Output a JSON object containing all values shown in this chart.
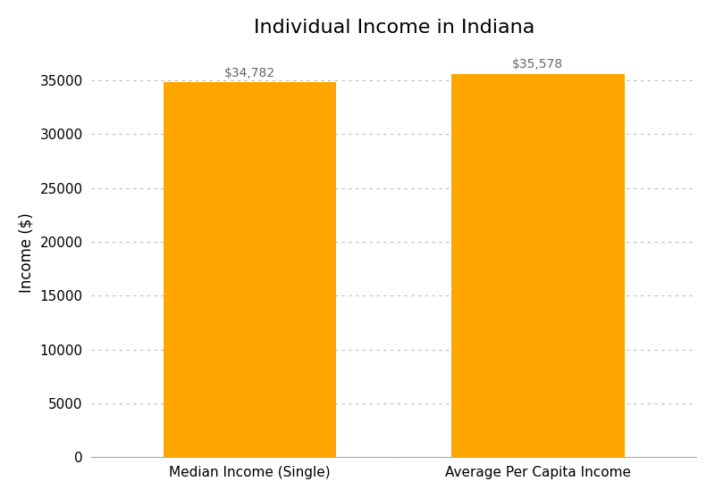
{
  "title": "Individual Income in Indiana",
  "categories": [
    "Median Income (Single)",
    "Average Per Capita Income"
  ],
  "values": [
    34782,
    35578
  ],
  "bar_color": "#FFA500",
  "bar_labels": [
    "$34,782",
    "$35,578"
  ],
  "ylabel": "Income ($)",
  "ylim": [
    0,
    38000
  ],
  "yticks": [
    0,
    5000,
    10000,
    15000,
    20000,
    25000,
    30000,
    35000
  ],
  "background_color": "#ffffff",
  "grid_color": "#bbbbbb",
  "title_fontsize": 16,
  "label_fontsize": 12,
  "tick_fontsize": 11,
  "bar_label_fontsize": 10,
  "bar_width": 0.6
}
